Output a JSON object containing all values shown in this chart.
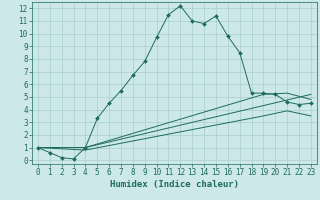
{
  "xlabel": "Humidex (Indice chaleur)",
  "xlim": [
    -0.5,
    23.5
  ],
  "ylim": [
    -0.3,
    12.5
  ],
  "xticks": [
    0,
    1,
    2,
    3,
    4,
    5,
    6,
    7,
    8,
    9,
    10,
    11,
    12,
    13,
    14,
    15,
    16,
    17,
    18,
    19,
    20,
    21,
    22,
    23
  ],
  "yticks": [
    0,
    1,
    2,
    3,
    4,
    5,
    6,
    7,
    8,
    9,
    10,
    11,
    12
  ],
  "background_color": "#cce8e8",
  "grid_color": "#aacece",
  "line_color": "#1e6b5e",
  "line1_x": [
    0,
    1,
    2,
    3,
    4,
    5,
    6,
    7,
    8,
    9,
    10,
    11,
    12,
    13,
    14,
    15,
    16,
    17,
    18,
    19,
    20,
    21,
    22,
    23
  ],
  "line1_y": [
    1.0,
    0.6,
    0.2,
    0.1,
    1.0,
    3.3,
    4.5,
    5.5,
    6.7,
    7.8,
    9.7,
    11.5,
    12.2,
    11.0,
    10.8,
    11.4,
    9.8,
    8.5,
    5.3,
    5.3,
    5.2,
    4.6,
    4.4,
    4.5
  ],
  "line2_x": [
    0,
    4,
    23
  ],
  "line2_y": [
    1.0,
    1.0,
    5.2
  ],
  "line3_x": [
    0,
    4,
    19,
    21,
    23
  ],
  "line3_y": [
    1.0,
    1.0,
    5.2,
    5.3,
    4.8
  ],
  "line4_x": [
    0,
    4,
    19,
    21,
    23
  ],
  "line4_y": [
    1.0,
    0.8,
    3.5,
    3.9,
    3.5
  ],
  "tick_fontsize": 5.5,
  "xlabel_fontsize": 6.5
}
